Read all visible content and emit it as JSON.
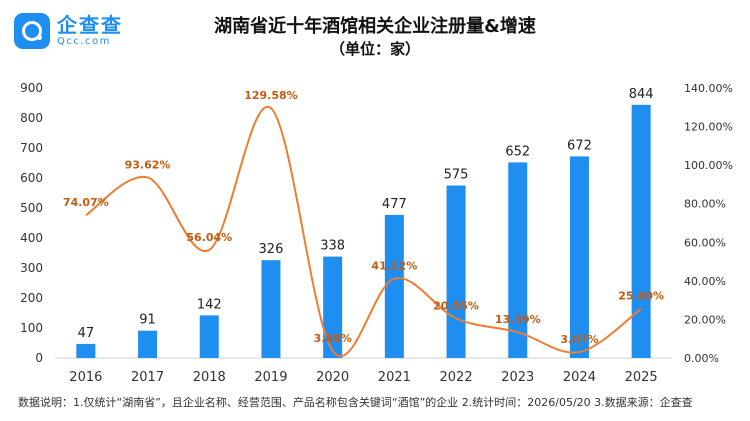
{
  "header": {
    "logo_name": "企查查",
    "logo_domain": "Qcc.com",
    "title": "湖南省近十年酒馆相关企业注册量&增速",
    "subtitle": "（单位：家）"
  },
  "footer": {
    "note": "数据说明：1.仅统计“湖南省”，且企业名称、经营范围、产品名称包含关键词“酒馆”的企业  2.统计时间：2026/05/20  3.数据来源：企查查"
  },
  "colors": {
    "bar": "#1f8ef1",
    "line": "#ed7d31",
    "line_label": "#c55a11",
    "axis_text": "#333333"
  },
  "chart_data": {
    "type": "bar",
    "categories": [
      "2016",
      "2017",
      "2018",
      "2019",
      "2020",
      "2021",
      "2022",
      "2023",
      "2024",
      "2025"
    ],
    "series": [
      {
        "type": "bar",
        "axis": "left",
        "values": [
          47,
          91,
          142,
          326,
          338,
          477,
          575,
          652,
          672,
          844
        ],
        "labels": [
          "47",
          "91",
          "142",
          "326",
          "338",
          "477",
          "575",
          "652",
          "672",
          "844"
        ]
      },
      {
        "type": "line",
        "axis": "right",
        "smooth": true,
        "values": [
          74.07,
          93.62,
          56.04,
          129.58,
          3.68,
          41.12,
          20.55,
          13.39,
          3.07,
          25.6
        ],
        "labels": [
          "74.07%",
          "93.62%",
          "56.04%",
          "129.58%",
          "3.68%",
          "41.12%",
          "20.55%",
          "13.39%",
          "3.07%",
          "25.60%"
        ]
      }
    ],
    "ylim": [
      0,
      900
    ],
    "yticks": [
      "0",
      "100",
      "200",
      "300",
      "400",
      "500",
      "600",
      "700",
      "800",
      "900"
    ],
    "y2lim": [
      0,
      140
    ],
    "y2ticks": [
      "0.00%",
      "20.00%",
      "40.00%",
      "60.00%",
      "80.00%",
      "100.00%",
      "120.00%",
      "140.00%"
    ],
    "grid": false,
    "legend": "none"
  }
}
